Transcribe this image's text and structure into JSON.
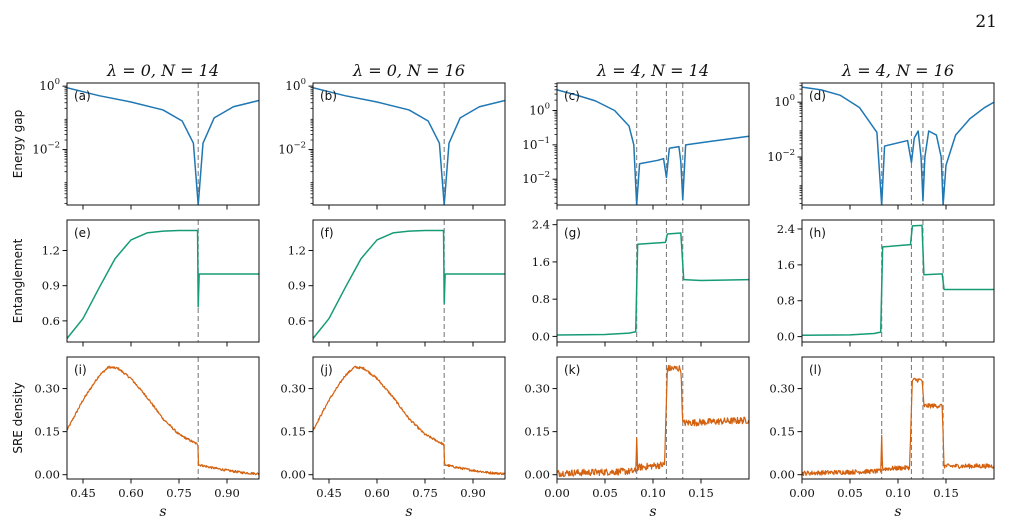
{
  "page_number": "21",
  "colors": {
    "gap": "#1f77b4",
    "ent": "#169b77",
    "sre": "#d4610f",
    "vline": "#808080"
  },
  "columns": [
    {
      "title_pre": "λ = 0, ",
      "title_n": "N = 14"
    },
    {
      "title_pre": "λ = 0, ",
      "title_n": "N = 16"
    },
    {
      "title_pre": "λ = 4, ",
      "title_n": "N = 14"
    },
    {
      "title_pre": "λ = 4, ",
      "title_n": "N = 16"
    }
  ],
  "row_labels": [
    "Energy gap",
    "Entanglement",
    "SRE density"
  ],
  "x_label": "s",
  "chart_data": [
    {
      "panel": "(a)",
      "type": "line",
      "series": "Energy gap",
      "xlim": [
        0.4,
        1.0
      ],
      "ylim_log10": [
        -3.75,
        0.1
      ],
      "yscale": "log",
      "yticks": [
        {
          "exp": "0",
          "v": 0
        },
        {
          "exp": "−2",
          "v": -2
        }
      ],
      "transitions": [
        0.81
      ],
      "points": [
        [
          0.4,
          -0.05
        ],
        [
          0.5,
          -0.3
        ],
        [
          0.6,
          -0.5
        ],
        [
          0.7,
          -0.75
        ],
        [
          0.76,
          -1.1
        ],
        [
          0.795,
          -1.8
        ],
        [
          0.81,
          -3.75
        ],
        [
          0.825,
          -1.8
        ],
        [
          0.86,
          -1.0
        ],
        [
          0.92,
          -0.65
        ],
        [
          1.0,
          -0.45
        ]
      ]
    },
    {
      "panel": "(b)",
      "type": "line",
      "series": "Energy gap",
      "xlim": [
        0.4,
        1.0
      ],
      "ylim_log10": [
        -3.75,
        0.1
      ],
      "yscale": "log",
      "yticks": [
        {
          "exp": "0",
          "v": 0
        },
        {
          "exp": "−2",
          "v": -2
        }
      ],
      "transitions": [
        0.81
      ],
      "points": [
        [
          0.4,
          -0.05
        ],
        [
          0.5,
          -0.3
        ],
        [
          0.6,
          -0.5
        ],
        [
          0.7,
          -0.75
        ],
        [
          0.76,
          -1.1
        ],
        [
          0.795,
          -1.8
        ],
        [
          0.81,
          -3.75
        ],
        [
          0.825,
          -1.8
        ],
        [
          0.86,
          -1.0
        ],
        [
          0.92,
          -0.65
        ],
        [
          1.0,
          -0.45
        ]
      ]
    },
    {
      "panel": "(c)",
      "type": "line",
      "series": "Energy gap",
      "xlim": [
        0.0,
        0.2
      ],
      "ylim_log10": [
        -2.75,
        0.8
      ],
      "yscale": "log",
      "yticks": [
        {
          "exp": "0",
          "v": 0
        },
        {
          "exp": "−1",
          "v": -1
        },
        {
          "exp": "−2",
          "v": -2
        }
      ],
      "transitions": [
        0.083,
        0.114,
        0.131
      ],
      "points": [
        [
          0.0,
          0.6
        ],
        [
          0.02,
          0.45
        ],
        [
          0.04,
          0.28
        ],
        [
          0.06,
          0.0
        ],
        [
          0.075,
          -0.45
        ],
        [
          0.08,
          -1.0
        ],
        [
          0.083,
          -2.75
        ],
        [
          0.086,
          -1.55
        ],
        [
          0.105,
          -1.45
        ],
        [
          0.111,
          -1.4
        ],
        [
          0.114,
          -1.95
        ],
        [
          0.117,
          -1.1
        ],
        [
          0.127,
          -1.05
        ],
        [
          0.129,
          -1.5
        ],
        [
          0.131,
          -2.6
        ],
        [
          0.134,
          -1.0
        ],
        [
          0.16,
          -0.9
        ],
        [
          0.2,
          -0.75
        ]
      ]
    },
    {
      "panel": "(d)",
      "type": "line",
      "series": "Energy gap",
      "xlim": [
        0.0,
        0.2
      ],
      "ylim_log10": [
        -3.75,
        0.7
      ],
      "yscale": "log",
      "yticks": [
        {
          "exp": "0",
          "v": 0
        },
        {
          "exp": "−2",
          "v": -2
        }
      ],
      "transitions": [
        0.083,
        0.114,
        0.126,
        0.147
      ],
      "points": [
        [
          0.0,
          0.55
        ],
        [
          0.02,
          0.45
        ],
        [
          0.04,
          0.25
        ],
        [
          0.06,
          -0.2
        ],
        [
          0.078,
          -1.1
        ],
        [
          0.083,
          -3.75
        ],
        [
          0.086,
          -1.6
        ],
        [
          0.11,
          -1.4
        ],
        [
          0.114,
          -2.2
        ],
        [
          0.117,
          -1.3
        ],
        [
          0.121,
          -1.05
        ],
        [
          0.124,
          -2.0
        ],
        [
          0.126,
          -3.6
        ],
        [
          0.128,
          -2.0
        ],
        [
          0.132,
          -1.05
        ],
        [
          0.14,
          -1.2
        ],
        [
          0.145,
          -2.0
        ],
        [
          0.147,
          -3.75
        ],
        [
          0.15,
          -2.3
        ],
        [
          0.16,
          -1.2
        ],
        [
          0.175,
          -0.6
        ],
        [
          0.19,
          -0.2
        ],
        [
          0.2,
          0.0
        ]
      ]
    },
    {
      "panel": "(e)",
      "type": "line",
      "series": "Entanglement",
      "xlim": [
        0.4,
        1.0
      ],
      "ylim": [
        0.42,
        1.46
      ],
      "yscale": "linear",
      "yticks": [
        "0.6",
        "0.9",
        "1.2"
      ],
      "transitions": [
        0.81
      ],
      "points": [
        [
          0.4,
          0.45
        ],
        [
          0.45,
          0.62
        ],
        [
          0.5,
          0.88
        ],
        [
          0.55,
          1.13
        ],
        [
          0.6,
          1.29
        ],
        [
          0.65,
          1.35
        ],
        [
          0.7,
          1.365
        ],
        [
          0.75,
          1.37
        ],
        [
          0.808,
          1.37
        ],
        [
          0.81,
          0.72
        ],
        [
          0.813,
          1.0
        ],
        [
          1.0,
          1.0
        ]
      ]
    },
    {
      "panel": "(f)",
      "type": "line",
      "series": "Entanglement",
      "xlim": [
        0.4,
        1.0
      ],
      "ylim": [
        0.42,
        1.46
      ],
      "yscale": "linear",
      "yticks": [
        "0.6",
        "0.9",
        "1.2"
      ],
      "transitions": [
        0.81
      ],
      "points": [
        [
          0.4,
          0.45
        ],
        [
          0.45,
          0.62
        ],
        [
          0.5,
          0.88
        ],
        [
          0.55,
          1.13
        ],
        [
          0.6,
          1.29
        ],
        [
          0.65,
          1.35
        ],
        [
          0.7,
          1.365
        ],
        [
          0.75,
          1.37
        ],
        [
          0.808,
          1.37
        ],
        [
          0.81,
          0.75
        ],
        [
          0.813,
          1.0
        ],
        [
          1.0,
          1.0
        ]
      ]
    },
    {
      "panel": "(g)",
      "type": "line",
      "series": "Entanglement",
      "xlim": [
        0.0,
        0.2
      ],
      "ylim": [
        -0.12,
        2.5
      ],
      "yscale": "linear",
      "yticks": [
        "0.0",
        "0.8",
        "1.6",
        "2.4"
      ],
      "transitions": [
        0.083,
        0.114,
        0.131
      ],
      "points": [
        [
          0.0,
          0.03
        ],
        [
          0.05,
          0.04
        ],
        [
          0.075,
          0.07
        ],
        [
          0.082,
          0.1
        ],
        [
          0.084,
          1.98
        ],
        [
          0.113,
          2.02
        ],
        [
          0.115,
          2.2
        ],
        [
          0.129,
          2.22
        ],
        [
          0.132,
          1.22
        ],
        [
          0.15,
          1.2
        ],
        [
          0.2,
          1.22
        ]
      ]
    },
    {
      "panel": "(h)",
      "type": "line",
      "series": "Entanglement",
      "xlim": [
        0.0,
        0.2
      ],
      "ylim": [
        -0.12,
        2.6
      ],
      "yscale": "linear",
      "yticks": [
        "0.0",
        "0.8",
        "1.6",
        "2.4"
      ],
      "transitions": [
        0.083,
        0.114,
        0.126,
        0.147
      ],
      "points": [
        [
          0.0,
          0.03
        ],
        [
          0.05,
          0.04
        ],
        [
          0.075,
          0.07
        ],
        [
          0.082,
          0.1
        ],
        [
          0.084,
          2.0
        ],
        [
          0.113,
          2.05
        ],
        [
          0.115,
          2.47
        ],
        [
          0.125,
          2.48
        ],
        [
          0.127,
          1.38
        ],
        [
          0.146,
          1.4
        ],
        [
          0.148,
          1.05
        ],
        [
          0.2,
          1.05
        ]
      ]
    },
    {
      "panel": "(i)",
      "type": "line",
      "series": "SRE density",
      "xlim": [
        0.4,
        1.0
      ],
      "ylim": [
        -0.015,
        0.41
      ],
      "yscale": "linear",
      "yticks": [
        "0.00",
        "0.15",
        "0.30"
      ],
      "transitions": [
        0.81
      ],
      "noise": 0.004,
      "points": [
        [
          0.4,
          0.155
        ],
        [
          0.45,
          0.26
        ],
        [
          0.5,
          0.345
        ],
        [
          0.53,
          0.375
        ],
        [
          0.56,
          0.37
        ],
        [
          0.6,
          0.335
        ],
        [
          0.65,
          0.27
        ],
        [
          0.7,
          0.195
        ],
        [
          0.75,
          0.14
        ],
        [
          0.809,
          0.105
        ],
        [
          0.811,
          0.035
        ],
        [
          0.85,
          0.025
        ],
        [
          0.9,
          0.015
        ],
        [
          0.95,
          0.007
        ],
        [
          1.0,
          0.003
        ]
      ]
    },
    {
      "panel": "(j)",
      "type": "line",
      "series": "SRE density",
      "xlim": [
        0.4,
        1.0
      ],
      "ylim": [
        -0.015,
        0.41
      ],
      "yscale": "linear",
      "yticks": [
        "0.00",
        "0.15",
        "0.30"
      ],
      "transitions": [
        0.81
      ],
      "noise": 0.004,
      "points": [
        [
          0.4,
          0.155
        ],
        [
          0.45,
          0.26
        ],
        [
          0.5,
          0.345
        ],
        [
          0.53,
          0.375
        ],
        [
          0.56,
          0.37
        ],
        [
          0.6,
          0.335
        ],
        [
          0.65,
          0.27
        ],
        [
          0.7,
          0.195
        ],
        [
          0.75,
          0.14
        ],
        [
          0.809,
          0.105
        ],
        [
          0.811,
          0.035
        ],
        [
          0.85,
          0.025
        ],
        [
          0.9,
          0.015
        ],
        [
          0.95,
          0.007
        ],
        [
          1.0,
          0.003
        ]
      ]
    },
    {
      "panel": "(k)",
      "type": "line",
      "series": "SRE density",
      "xlim": [
        0.0,
        0.2
      ],
      "ylim": [
        -0.015,
        0.41
      ],
      "yscale": "linear",
      "yticks": [
        "0.00",
        "0.15",
        "0.30"
      ],
      "transitions": [
        0.083,
        0.114,
        0.131
      ],
      "noise": 0.012,
      "points": [
        [
          0.0,
          0.005
        ],
        [
          0.08,
          0.012
        ],
        [
          0.082,
          0.012
        ],
        [
          0.083,
          0.13
        ],
        [
          0.084,
          0.025
        ],
        [
          0.112,
          0.035
        ],
        [
          0.115,
          0.37
        ],
        [
          0.129,
          0.37
        ],
        [
          0.131,
          0.18
        ],
        [
          0.2,
          0.19
        ]
      ]
    },
    {
      "panel": "(l)",
      "type": "line",
      "series": "SRE density",
      "xlim": [
        0.0,
        0.2
      ],
      "ylim": [
        -0.015,
        0.41
      ],
      "yscale": "linear",
      "yticks": [
        "0.00",
        "0.15",
        "0.30"
      ],
      "transitions": [
        0.083,
        0.114,
        0.126,
        0.147
      ],
      "noise": 0.008,
      "points": [
        [
          0.0,
          0.005
        ],
        [
          0.08,
          0.012
        ],
        [
          0.082,
          0.012
        ],
        [
          0.083,
          0.13
        ],
        [
          0.084,
          0.02
        ],
        [
          0.112,
          0.025
        ],
        [
          0.115,
          0.33
        ],
        [
          0.125,
          0.33
        ],
        [
          0.127,
          0.24
        ],
        [
          0.146,
          0.24
        ],
        [
          0.148,
          0.03
        ],
        [
          0.2,
          0.03
        ]
      ]
    }
  ],
  "x_ticks": {
    "lambda0": [
      {
        "v": 0.45,
        "label": "0.45"
      },
      {
        "v": 0.6,
        "label": "0.60"
      },
      {
        "v": 0.75,
        "label": "0.75"
      },
      {
        "v": 0.9,
        "label": "0.90"
      }
    ],
    "lambda4": [
      {
        "v": 0.0,
        "label": "0.00"
      },
      {
        "v": 0.05,
        "label": "0.05"
      },
      {
        "v": 0.1,
        "label": "0.10"
      },
      {
        "v": 0.15,
        "label": "0.15"
      }
    ]
  }
}
